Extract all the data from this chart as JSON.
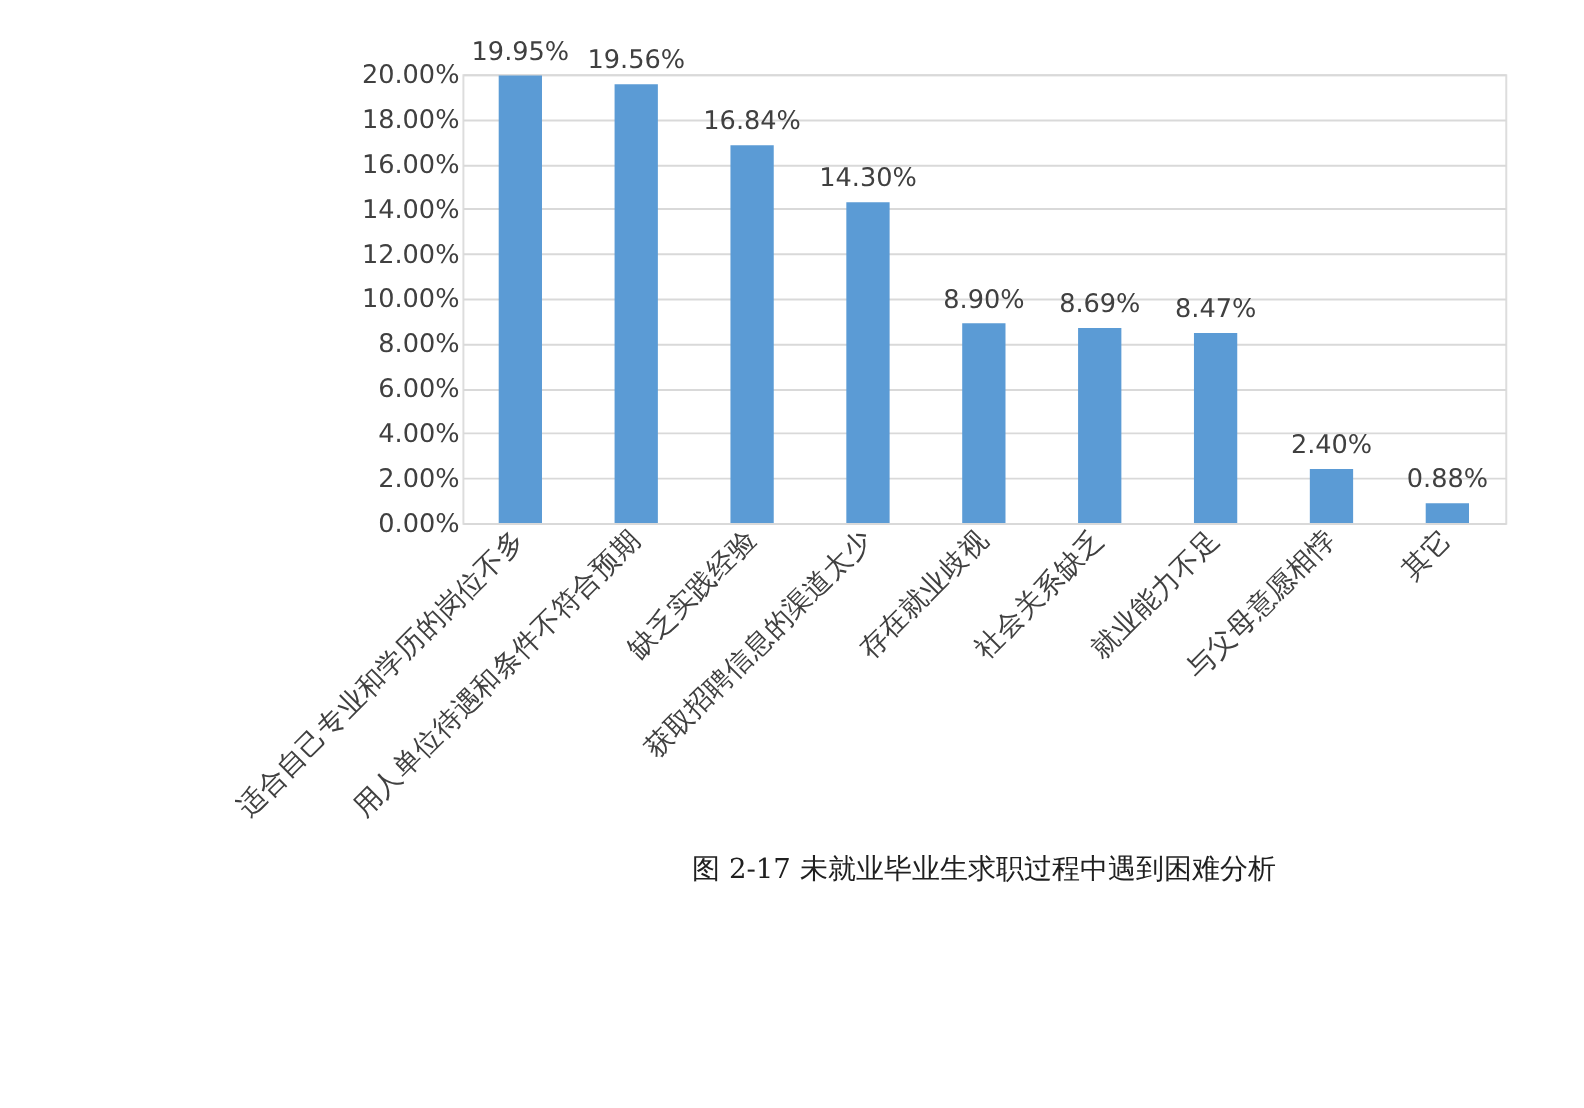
{
  "chart_data": {
    "type": "bar",
    "categories": [
      "适合自己专业和学历的岗位不多",
      "用人单位待遇和条件不符合预期",
      "缺乏实践经验",
      "获取招聘信息的渠道太少",
      "存在就业歧视",
      "社会关系缺乏",
      "就业能力不足",
      "与父母意愿相悖",
      "其它"
    ],
    "values": [
      19.95,
      19.56,
      16.84,
      14.3,
      8.9,
      8.69,
      8.47,
      2.4,
      0.88
    ],
    "value_labels": [
      "19.95%",
      "19.56%",
      "16.84%",
      "14.30%",
      "8.90%",
      "8.69%",
      "8.47%",
      "2.40%",
      "0.88%"
    ],
    "color": "#5b9bd5",
    "ylim": [
      0,
      20
    ],
    "yticks": [
      {
        "value": 0,
        "label": "0.00%"
      },
      {
        "value": 2,
        "label": "2.00%"
      },
      {
        "value": 4,
        "label": "4.00%"
      },
      {
        "value": 6,
        "label": "6.00%"
      },
      {
        "value": 8,
        "label": "8.00%"
      },
      {
        "value": 10,
        "label": "10.00%"
      },
      {
        "value": 12,
        "label": "12.00%"
      },
      {
        "value": 14,
        "label": "14.00%"
      },
      {
        "value": 16,
        "label": "16.00%"
      },
      {
        "value": 18,
        "label": "18.00%"
      },
      {
        "value": 20,
        "label": "20.00%"
      }
    ],
    "grid": "y",
    "annotations": [
      "图 2-17 未就业毕业生求职过程中遇到困难分析"
    ]
  }
}
